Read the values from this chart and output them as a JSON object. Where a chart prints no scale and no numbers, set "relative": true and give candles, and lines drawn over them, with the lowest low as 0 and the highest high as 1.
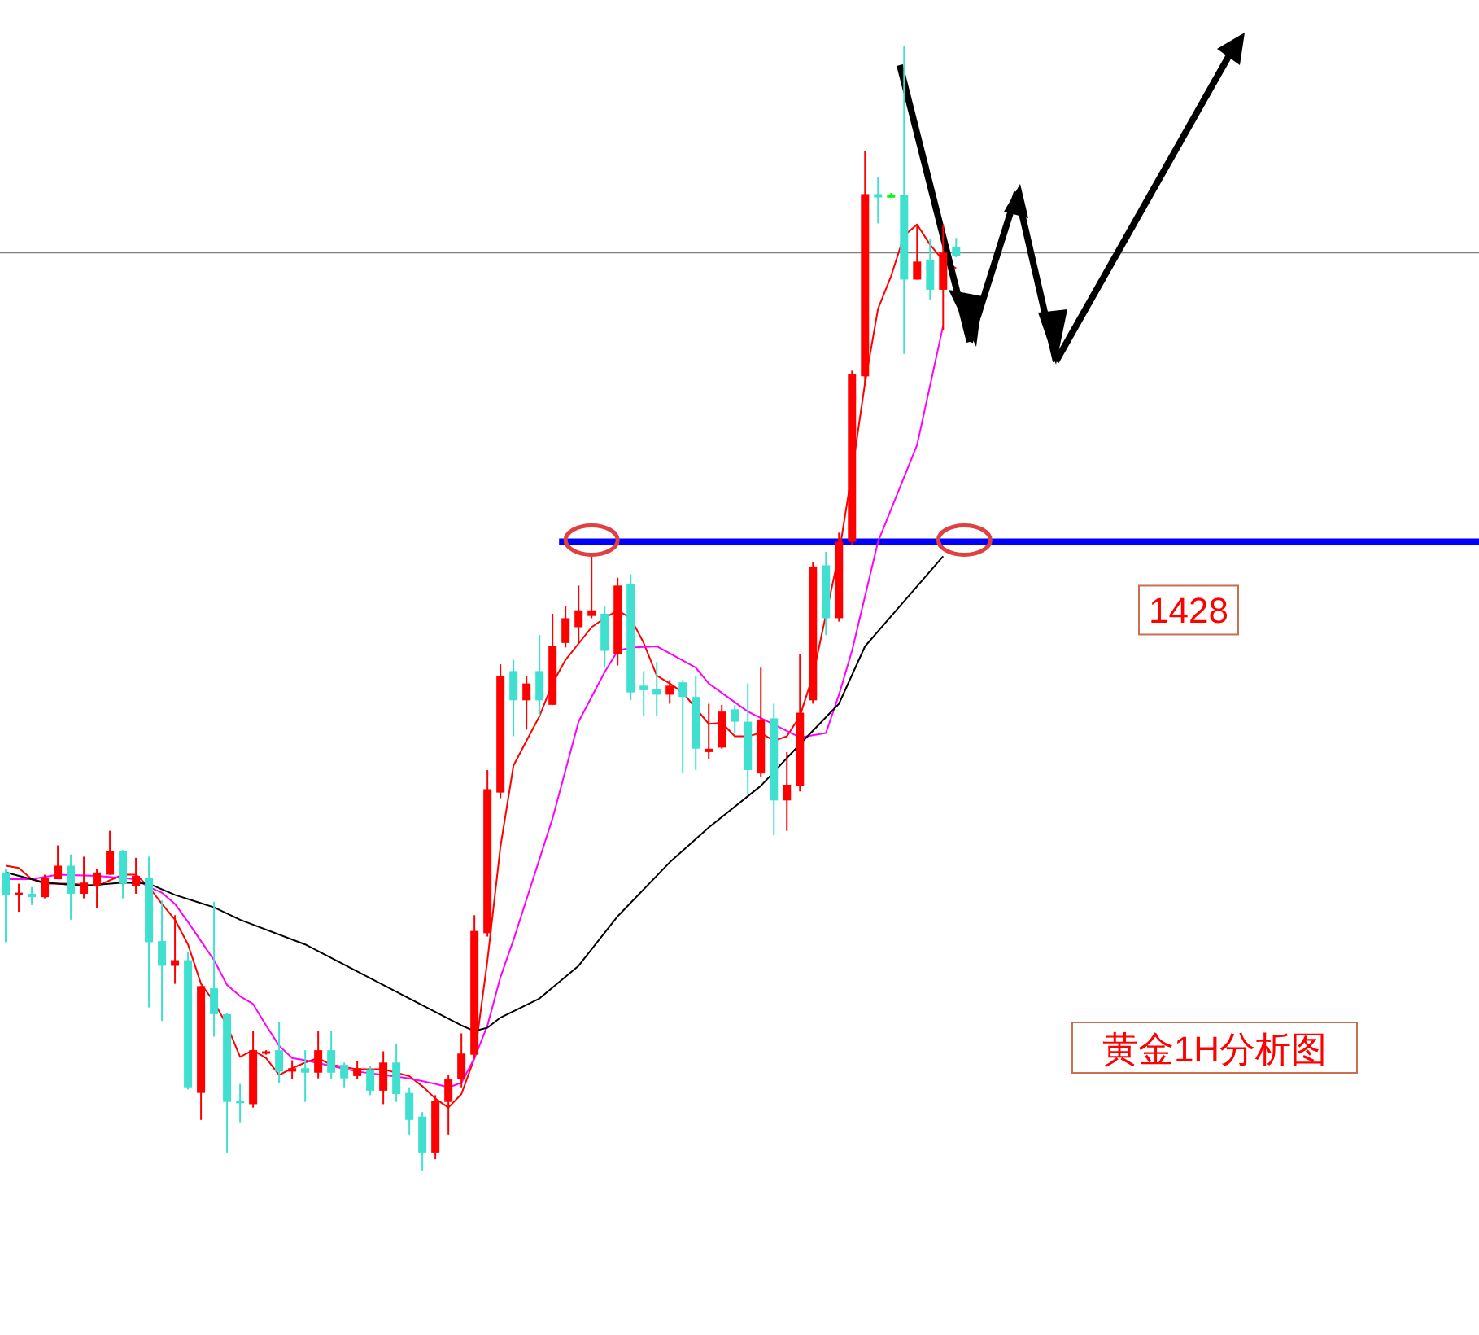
{
  "chart_data": {
    "type": "candlestick",
    "title": "黄金1H分析图",
    "relative": true,
    "categories": [
      null,
      null,
      null,
      null,
      null,
      null,
      null,
      null,
      null,
      null,
      null,
      null,
      null,
      null,
      null,
      null,
      null,
      null,
      null,
      null,
      null,
      null,
      null,
      null,
      null,
      null,
      null,
      null,
      null,
      null,
      null,
      null,
      null,
      null,
      null,
      null,
      null,
      null,
      null,
      null,
      null,
      null,
      null,
      null,
      null,
      null,
      null,
      null,
      null,
      null,
      null,
      null,
      null,
      null,
      null,
      null,
      null,
      null,
      null,
      null,
      null,
      null,
      null,
      null,
      null,
      null,
      null,
      null,
      null,
      null,
      null,
      null,
      null,
      null
    ],
    "ohlc": [
      [
        0.265,
        0.268,
        0.203,
        0.245
      ],
      [
        0.246,
        0.255,
        0.23,
        0.247
      ],
      [
        0.246,
        0.252,
        0.236,
        0.243
      ],
      [
        0.243,
        0.263,
        0.242,
        0.26
      ],
      [
        0.259,
        0.289,
        0.259,
        0.271
      ],
      [
        0.271,
        0.281,
        0.223,
        0.246
      ],
      [
        0.246,
        0.279,
        0.242,
        0.256
      ],
      [
        0.253,
        0.268,
        0.233,
        0.265
      ],
      [
        0.263,
        0.302,
        0.263,
        0.284
      ],
      [
        0.284,
        0.285,
        0.242,
        0.255
      ],
      [
        0.253,
        0.278,
        0.246,
        0.262
      ],
      [
        0.26,
        0.279,
        0.145,
        0.203
      ],
      [
        0.204,
        0.24,
        0.133,
        0.182
      ],
      [
        0.182,
        0.227,
        0.166,
        0.187
      ],
      [
        0.187,
        0.194,
        0.072,
        0.074
      ],
      [
        0.069,
        0.164,
        0.045,
        0.164
      ],
      [
        0.162,
        0.239,
        0.119,
        0.139
      ],
      [
        0.139,
        0.14,
        0.016,
        0.061
      ],
      [
        0.062,
        0.077,
        0.043,
        0.061
      ],
      [
        0.059,
        0.124,
        0.056,
        0.107
      ],
      [
        0.104,
        0.107,
        0.103,
        0.106
      ],
      [
        0.107,
        0.132,
        0.078,
        0.088
      ],
      [
        0.088,
        0.098,
        0.081,
        0.091
      ],
      [
        0.091,
        0.107,
        0.061,
        0.087
      ],
      [
        0.087,
        0.124,
        0.082,
        0.107
      ],
      [
        0.107,
        0.124,
        0.081,
        0.087
      ],
      [
        0.094,
        0.096,
        0.074,
        0.082
      ],
      [
        0.084,
        0.097,
        0.081,
        0.091
      ],
      [
        0.09,
        0.093,
        0.067,
        0.071
      ],
      [
        0.071,
        0.106,
        0.059,
        0.096
      ],
      [
        0.096,
        0.113,
        0.061,
        0.068
      ],
      [
        0.069,
        0.074,
        0.032,
        0.045
      ],
      [
        0.048,
        0.052,
        0,
        0.016
      ],
      [
        0.016,
        0.067,
        0.01,
        0.062
      ],
      [
        0.061,
        0.085,
        0.032,
        0.081
      ],
      [
        0.081,
        0.122,
        0.074,
        0.104
      ],
      [
        0.103,
        0.227,
        0.1,
        0.213
      ],
      [
        0.211,
        0.356,
        0.208,
        0.339
      ],
      [
        0.336,
        0.45,
        0.331,
        0.44
      ],
      [
        0.444,
        0.454,
        0.386,
        0.418
      ],
      [
        0.418,
        0.44,
        0.392,
        0.433
      ],
      [
        0.444,
        0.476,
        0.404,
        0.418
      ],
      [
        0.414,
        0.495,
        0.414,
        0.466
      ],
      [
        0.469,
        0.502,
        0.465,
        0.491
      ],
      [
        0.483,
        0.52,
        0.469,
        0.498
      ],
      [
        0.493,
        0.548,
        0.491,
        0.498
      ],
      [
        0.495,
        0.502,
        0.447,
        0.462
      ],
      [
        0.459,
        0.527,
        0.449,
        0.52
      ],
      [
        0.521,
        0.53,
        0.418,
        0.425
      ],
      [
        0.431,
        0.444,
        0.404,
        0.427
      ],
      [
        0.428,
        0.452,
        0.404,
        0.423
      ],
      [
        0.423,
        0.436,
        0.415,
        0.431
      ],
      [
        0.434,
        0.436,
        0.353,
        0.421
      ],
      [
        0.421,
        0.44,
        0.356,
        0.375
      ],
      [
        0.372,
        0.415,
        0.366,
        0.375
      ],
      [
        0.376,
        0.414,
        0.375,
        0.408
      ],
      [
        0.41,
        0.414,
        0.389,
        0.399
      ],
      [
        0.399,
        0.433,
        0.334,
        0.356
      ],
      [
        0.353,
        0.447,
        0.35,
        0.401
      ],
      [
        0.402,
        0.415,
        0.298,
        0.329
      ],
      [
        0.329,
        0.372,
        0.302,
        0.343
      ],
      [
        0.342,
        0.459,
        0.337,
        0.407
      ],
      [
        0.418,
        0.541,
        0.415,
        0.537
      ],
      [
        0.538,
        0.55,
        0.476,
        0.491
      ],
      [
        0.491,
        0.567,
        0.488,
        0.559
      ],
      [
        0.559,
        0.711,
        0.556,
        0.708
      ],
      [
        0.706,
        0.906,
        0.698,
        0.868
      ],
      [
        0.868,
        0.883,
        0.842,
        0.865
      ],
      [
        0.867,
        0.869,
        0.865,
        0.867
      ],
      [
        0.867,
        1,
        0.726,
        0.792
      ],
      [
        0.792,
        0.841,
        0.792,
        0.808
      ],
      [
        0.809,
        0.828,
        0.774,
        0.783
      ],
      [
        0.783,
        0.841,
        0.747,
        0.816
      ],
      [
        0.821,
        0.829,
        0.812,
        0.813
      ]
    ],
    "colors": [
      "#40e0d0",
      "#ff0000",
      "#40e0d0",
      "#ff0000",
      "#ff0000",
      "#40e0d0",
      "#ff0000",
      "#ff0000",
      "#ff0000",
      "#40e0d0",
      "#ff0000",
      "#40e0d0",
      "#40e0d0",
      "#ff0000",
      "#40e0d0",
      "#ff0000",
      "#40e0d0",
      "#40e0d0",
      "#40e0d0",
      "#ff0000",
      "#ff0000",
      "#40e0d0",
      "#ff0000",
      "#40e0d0",
      "#ff0000",
      "#40e0d0",
      "#40e0d0",
      "#ff0000",
      "#40e0d0",
      "#ff0000",
      "#40e0d0",
      "#40e0d0",
      "#40e0d0",
      "#ff0000",
      "#ff0000",
      "#ff0000",
      "#ff0000",
      "#ff0000",
      "#ff0000",
      "#40e0d0",
      "#ff0000",
      "#40e0d0",
      "#ff0000",
      "#ff0000",
      "#ff0000",
      "#ff0000",
      "#40e0d0",
      "#ff0000",
      "#40e0d0",
      "#40e0d0",
      "#40e0d0",
      "#ff0000",
      "#40e0d0",
      "#40e0d0",
      "#ff0000",
      "#ff0000",
      "#40e0d0",
      "#40e0d0",
      "#ff0000",
      "#40e0d0",
      "#ff0000",
      "#ff0000",
      "#ff0000",
      "#40e0d0",
      "#ff0000",
      "#ff0000",
      "#ff0000",
      "#40e0d0",
      "#00ff00",
      "#40e0d0",
      "#ff0000",
      "#40e0d0",
      "#ff0000",
      "#40e0d0"
    ],
    "series": [
      {
        "type": "line",
        "color": "#ff0000",
        "values": [
          0.271,
          0.269,
          0.259,
          0.255,
          null,
          0.255,
          null,
          0.253,
          null,
          0.263,
          0.263,
          0.252,
          0.237,
          0.223,
          0.201,
          0.166,
          0.15,
          0.129,
          0.101,
          0.107,
          0.1,
          0.085,
          0.091,
          0.096,
          0.1,
          0.094,
          null,
          0.09,
          null,
          0.09,
          null,
          0.084,
          0.075,
          0.064,
          0.056,
          0.068,
          0.1,
          0.187,
          0.288,
          0.36,
          0.382,
          0.404,
          0.433,
          0.454,
          null,
          0.483,
          0.491,
          0.498,
          0.491,
          0.469,
          0.44,
          0.433,
          0.425,
          0.411,
          0.397,
          0.398,
          0.386,
          0.386,
          0.389,
          0.382,
          0.386,
          0.404,
          0.44,
          null,
          0.548,
          0.621,
          0.7,
          0.766,
          0.795,
          0.831,
          0.841,
          0.823,
          0.809,
          0.802
        ]
      },
      {
        "type": "line",
        "color": "#ff00ff",
        "values": [
          0.259,
          null,
          0.259,
          null,
          0.263,
          null,
          null,
          0.262,
          null,
          null,
          0.259,
          0.252,
          0.247,
          0.237,
          0.221,
          0.204,
          0.187,
          0.165,
          0.155,
          0.148,
          0.129,
          0.111,
          0.1,
          0.098,
          null,
          0.093,
          null,
          0.088,
          null,
          0.085,
          null,
          0.082,
          null,
          0.077,
          0.074,
          0.078,
          0.1,
          0.129,
          0.172,
          0.205,
          null,
          null,
          0.313,
          null,
          0.399,
          null,
          0.443,
          0.462,
          0.465,
          null,
          0.466,
          null,
          null,
          0.447,
          0.433,
          null,
          null,
          0.408,
          null,
          null,
          null,
          0.385,
          null,
          0.389,
          0.423,
          0.462,
          null,
          0.559,
          null,
          null,
          0.645,
          null,
          0.751,
          null
        ]
      },
      {
        "type": "line",
        "color": "#000000",
        "values": [
          0.265,
          null,
          null,
          0.256,
          null,
          null,
          0.253,
          null,
          null,
          0.256,
          null,
          0.255,
          null,
          0.245,
          null,
          null,
          0.234,
          null,
          0.223,
          null,
          null,
          null,
          null,
          0.201,
          null,
          null,
          null,
          0.177,
          null,
          null,
          null,
          0.153,
          null,
          null,
          null,
          0.129,
          0.124,
          0.127,
          0.136,
          null,
          null,
          0.153,
          null,
          null,
          0.182,
          null,
          null,
          0.226,
          null,
          null,
          null,
          0.274,
          null,
          null,
          0.305,
          null,
          null,
          null,
          0.342,
          null,
          null,
          0.379,
          null,
          null,
          0.415,
          null,
          0.466,
          null,
          null,
          null,
          null,
          null,
          0.546,
          null
        ]
      }
    ],
    "ref_lines": [
      {
        "axis": "y",
        "value": 0.559,
        "color": "#0000ff"
      },
      {
        "axis": "y",
        "value": 0.816,
        "color": "#808080"
      }
    ],
    "annotations": [
      "1428"
    ]
  }
}
